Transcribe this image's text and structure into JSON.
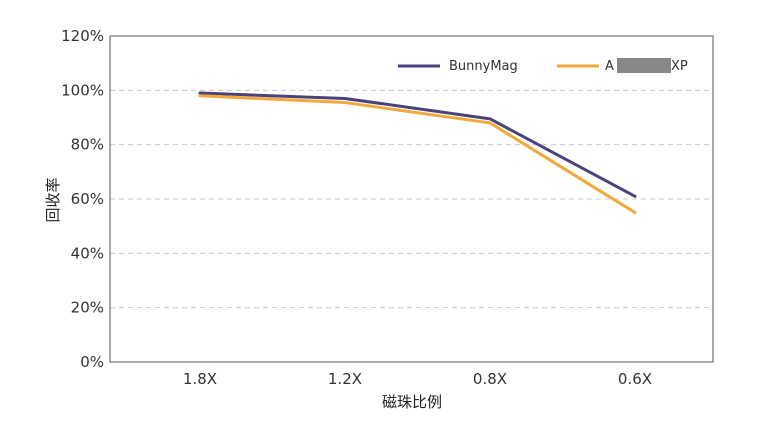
{
  "chart_data": {
    "type": "line",
    "title": "",
    "xlabel": "磁珠比例",
    "ylabel": "回收率",
    "categories": [
      "1.8X",
      "1.2X",
      "0.8X",
      "0.6X"
    ],
    "y_ticks": [
      "0%",
      "20%",
      "40%",
      "60%",
      "80%",
      "100%",
      "120%"
    ],
    "ylim": [
      0,
      120
    ],
    "grid": "horizontal dashed",
    "legend_position": "top-right",
    "series": [
      {
        "name": "BunnyMag",
        "color": "#4a437a",
        "values": [
          99,
          97,
          89.5,
          61
        ]
      },
      {
        "name": "A",
        "name_tail": "XP",
        "color": "#f2a93b",
        "values": [
          98,
          95.5,
          88,
          55
        ]
      }
    ]
  }
}
